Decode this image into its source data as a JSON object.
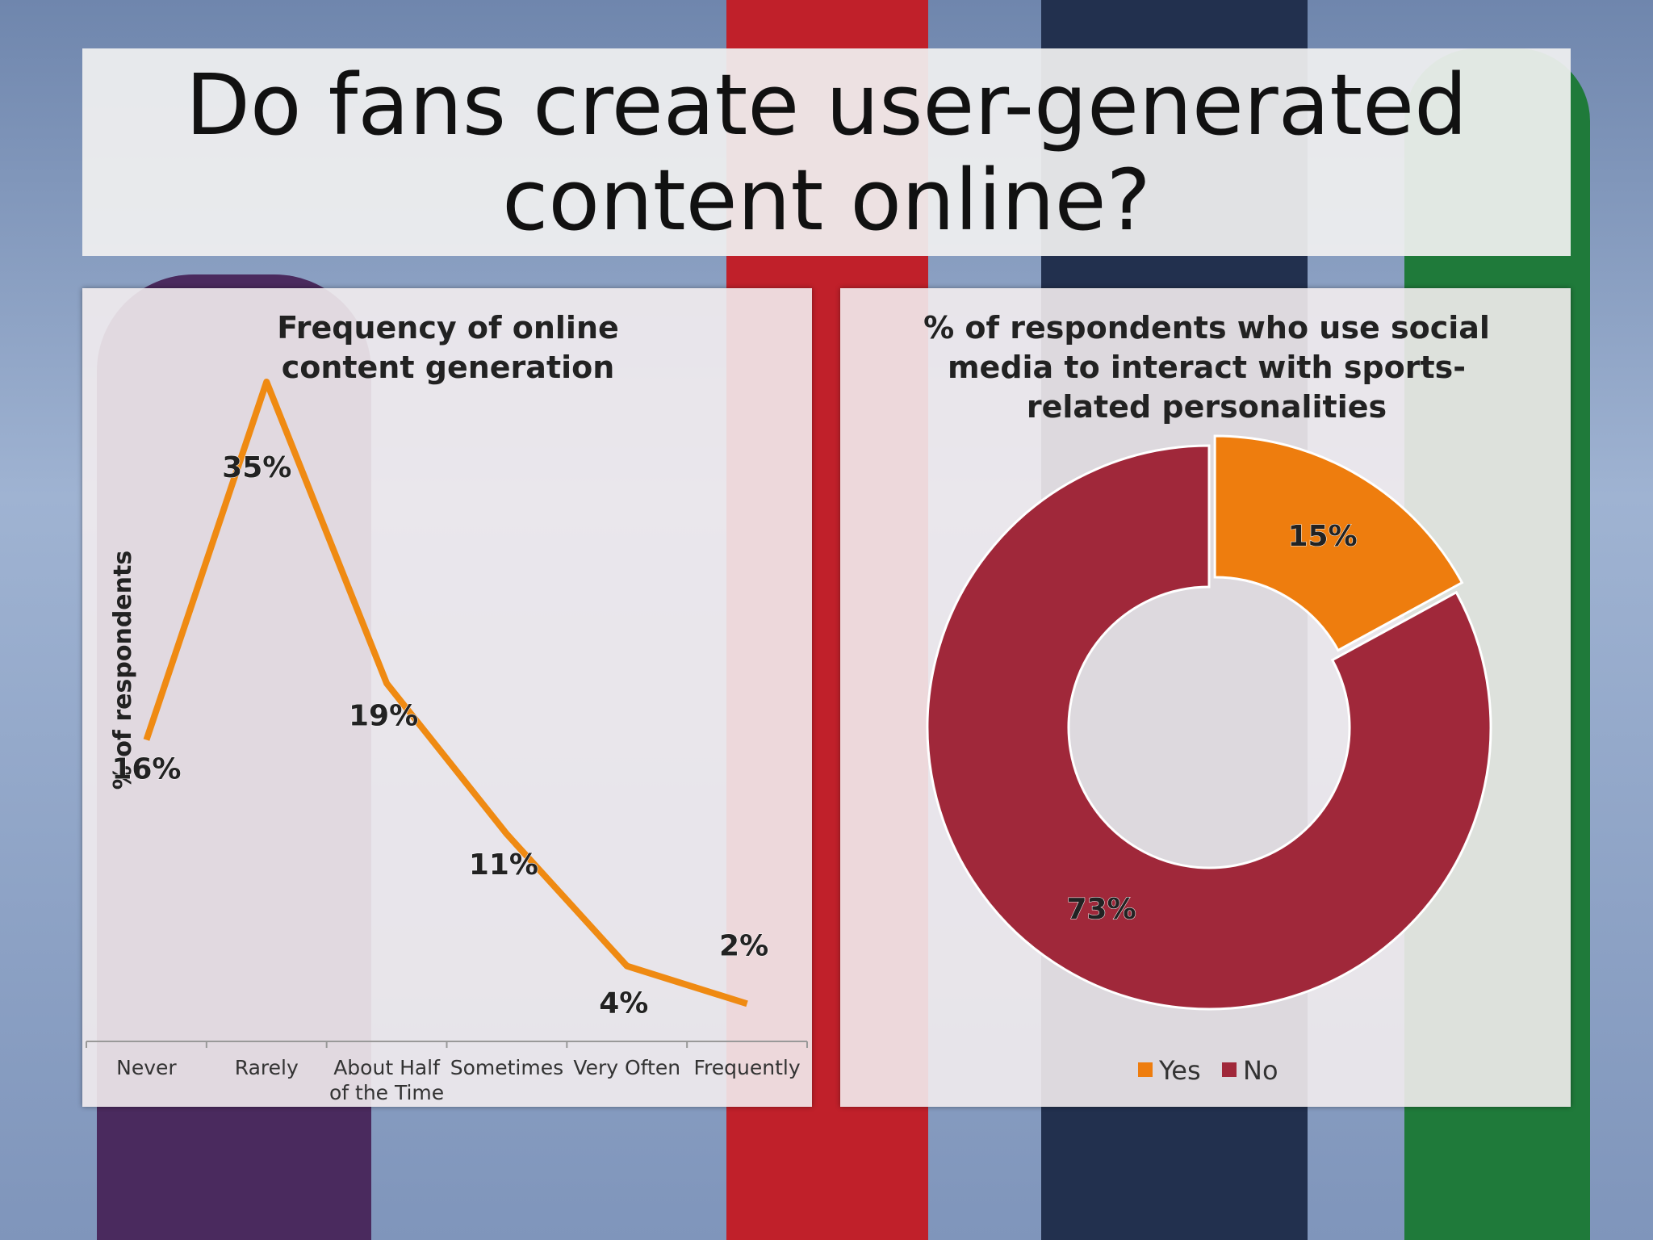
{
  "title": "Do fans create user-generated content online?",
  "chart_data": [
    {
      "type": "line",
      "title": "Frequency of online content generation",
      "y_label": "% of respondents",
      "categories": [
        "Never",
        "Rarely",
        "About Half of the Time",
        "Sometimes",
        "Very Often",
        "Frequently"
      ],
      "values": [
        16,
        35,
        19,
        11,
        4,
        2
      ],
      "value_labels": [
        "16%",
        "35%",
        "19%",
        "11%",
        "4%",
        "2%"
      ],
      "color": "#ef8a12"
    },
    {
      "type": "donut",
      "title": "% of respondents who use social media to interact with sports-related personalities",
      "categories": [
        "Yes",
        "No"
      ],
      "values": [
        15,
        73
      ],
      "value_labels": [
        "15%",
        "73%"
      ],
      "colors": [
        "#ee7d0e",
        "#a0283a"
      ],
      "legend": "bottom"
    }
  ]
}
